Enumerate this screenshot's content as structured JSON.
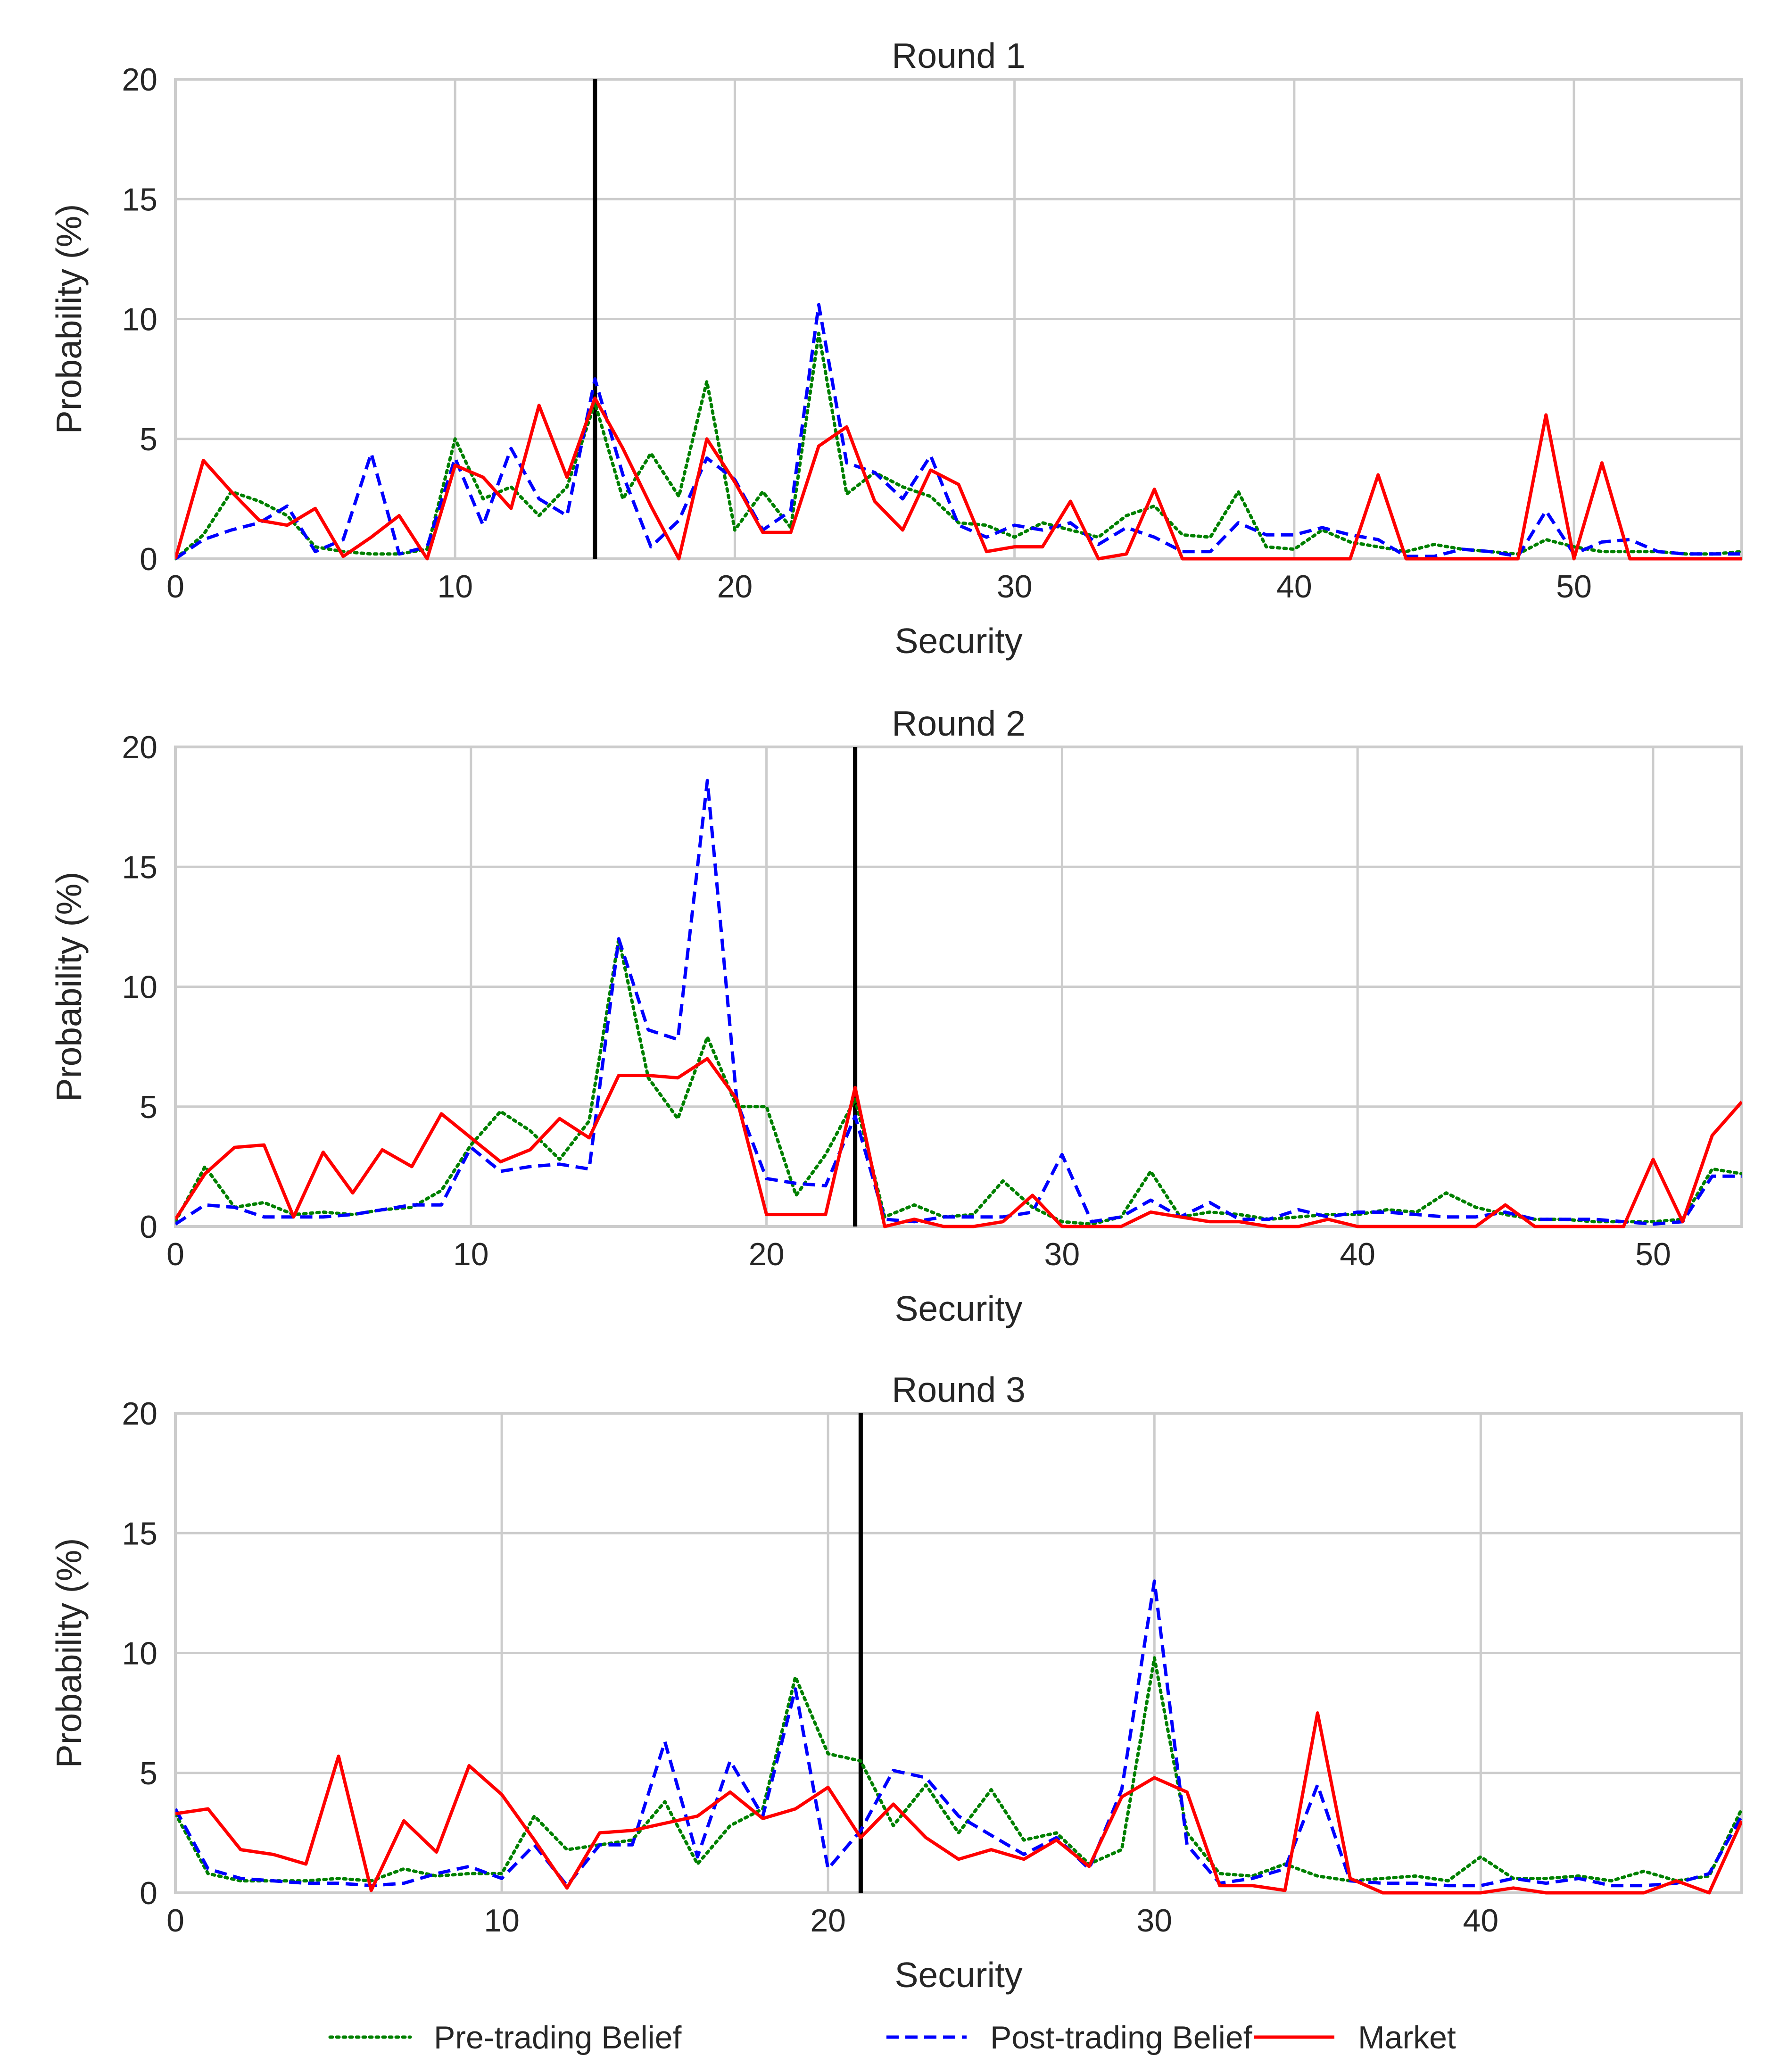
{
  "figure": {
    "legend": [
      {
        "label": "Pre-trading Belief",
        "color": "#008000",
        "style": "dotted"
      },
      {
        "label": "Post-trading Belief",
        "color": "#0000ff",
        "style": "dashed"
      },
      {
        "label": "Market",
        "color": "#ff0000",
        "style": "solid"
      }
    ],
    "legend_position": "bottom-center"
  },
  "chart_data": [
    {
      "type": "line",
      "title": "Round 1",
      "xlabel": "Security",
      "ylabel": "Probability (%)",
      "xlim": [
        0,
        56
      ],
      "ylim": [
        0,
        20
      ],
      "xticks": [
        0,
        10,
        20,
        30,
        40,
        50
      ],
      "yticks": [
        0,
        5,
        10,
        15,
        20
      ],
      "grid": true,
      "marker_line": {
        "x": 15,
        "color": "#000000"
      },
      "series": [
        {
          "name": "Pre-trading Belief",
          "color": "#008000",
          "style": "dotted",
          "values": [
            0,
            1.0,
            2.8,
            2.4,
            1.8,
            0.5,
            0.3,
            0.2,
            0.2,
            0.4,
            5.0,
            2.5,
            3.0,
            1.8,
            3.0,
            6.5,
            2.5,
            4.4,
            2.6,
            7.4,
            1.2,
            2.8,
            1.3,
            9.4,
            2.7,
            3.6,
            3.0,
            2.6,
            1.5,
            1.4,
            0.9,
            1.5,
            1.2,
            0.9,
            1.8,
            2.2,
            1.0,
            0.9,
            2.8,
            0.5,
            0.4,
            1.2,
            0.7,
            0.5,
            0.3,
            0.6,
            0.4,
            0.3,
            0.2,
            0.8,
            0.5,
            0.3,
            0.3,
            0.3,
            0.2,
            0.2,
            0.3
          ]
        },
        {
          "name": "Post-trading Belief",
          "color": "#0000ff",
          "style": "dashed",
          "values": [
            0,
            0.8,
            1.2,
            1.5,
            2.2,
            0.3,
            0.8,
            4.4,
            0.2,
            0.5,
            4.2,
            1.4,
            4.6,
            2.5,
            1.8,
            7.5,
            3.5,
            0.5,
            1.6,
            4.2,
            3.3,
            1.2,
            2.0,
            10.6,
            4.0,
            3.6,
            2.5,
            4.3,
            1.4,
            0.9,
            1.4,
            1.2,
            1.5,
            0.6,
            1.3,
            0.9,
            0.3,
            0.3,
            1.5,
            1.0,
            1.0,
            1.3,
            1.0,
            0.8,
            0.1,
            0.1,
            0.4,
            0.3,
            0.1,
            2.0,
            0.2,
            0.7,
            0.8,
            0.3,
            0.2,
            0.2,
            0.2
          ]
        },
        {
          "name": "Market",
          "color": "#ff0000",
          "style": "solid",
          "values": [
            0,
            4.1,
            2.8,
            1.6,
            1.4,
            2.1,
            0.1,
            0.9,
            1.8,
            0.0,
            3.9,
            3.4,
            2.1,
            6.4,
            3.4,
            6.7,
            4.6,
            2.2,
            0.0,
            5.0,
            3.2,
            1.1,
            1.1,
            4.7,
            5.5,
            2.4,
            1.2,
            3.7,
            3.1,
            0.3,
            0.5,
            0.5,
            2.4,
            0.0,
            0.2,
            2.9,
            0.0,
            0.0,
            0.0,
            0.0,
            0.0,
            0.0,
            0.0,
            3.5,
            0.0,
            0.0,
            0.0,
            0.0,
            0.0,
            6.0,
            0.0,
            4.0,
            0.0,
            0.0,
            0.0,
            0.0,
            0.0
          ]
        }
      ]
    },
    {
      "type": "line",
      "title": "Round 2",
      "xlabel": "Security",
      "ylabel": "Probability (%)",
      "xlim": [
        0,
        53
      ],
      "ylim": [
        0,
        20
      ],
      "xticks": [
        0,
        10,
        20,
        30,
        40,
        50
      ],
      "yticks": [
        0,
        5,
        10,
        15,
        20
      ],
      "grid": true,
      "marker_line": {
        "x": 23,
        "color": "#000000"
      },
      "series": [
        {
          "name": "Pre-trading Belief",
          "color": "#008000",
          "style": "dotted",
          "values": [
            0.2,
            2.5,
            0.8,
            1.0,
            0.5,
            0.6,
            0.5,
            0.7,
            0.8,
            1.5,
            3.4,
            4.8,
            4.0,
            2.8,
            4.4,
            12.0,
            6.2,
            4.5,
            7.9,
            5.0,
            5.0,
            1.3,
            3.0,
            5.3,
            0.4,
            0.9,
            0.4,
            0.5,
            1.9,
            0.8,
            0.2,
            0.1,
            0.4,
            2.3,
            0.4,
            0.6,
            0.5,
            0.3,
            0.4,
            0.5,
            0.5,
            0.7,
            0.6,
            1.4,
            0.8,
            0.5,
            0.3,
            0.3,
            0.2,
            0.2,
            0.2,
            0.3,
            2.4,
            2.2
          ]
        },
        {
          "name": "Post-trading Belief",
          "color": "#0000ff",
          "style": "dashed",
          "values": [
            0.1,
            0.9,
            0.8,
            0.4,
            0.4,
            0.4,
            0.5,
            0.7,
            0.9,
            0.9,
            3.3,
            2.3,
            2.5,
            2.6,
            2.4,
            12.0,
            8.2,
            7.8,
            18.6,
            5.2,
            2.0,
            1.8,
            1.7,
            4.6,
            0.3,
            0.2,
            0.4,
            0.4,
            0.4,
            0.6,
            3.0,
            0.2,
            0.4,
            1.1,
            0.4,
            1.0,
            0.3,
            0.3,
            0.7,
            0.4,
            0.6,
            0.6,
            0.5,
            0.4,
            0.4,
            0.6,
            0.3,
            0.3,
            0.3,
            0.2,
            0.1,
            0.2,
            2.1,
            2.1
          ]
        },
        {
          "name": "Market",
          "color": "#ff0000",
          "style": "solid",
          "values": [
            0.3,
            2.2,
            3.3,
            3.4,
            0.4,
            3.1,
            1.4,
            3.2,
            2.5,
            4.7,
            3.7,
            2.7,
            3.2,
            4.5,
            3.7,
            6.3,
            6.3,
            6.2,
            7.0,
            5.3,
            0.5,
            0.5,
            0.5,
            5.8,
            0.0,
            0.3,
            0.0,
            0.0,
            0.2,
            1.3,
            0.0,
            0.0,
            0.0,
            0.6,
            0.4,
            0.2,
            0.2,
            0.0,
            0.0,
            0.3,
            0.0,
            0.0,
            0.0,
            0.0,
            0.0,
            0.9,
            0.0,
            0.0,
            0.0,
            0.0,
            2.8,
            0.2,
            3.8,
            5.2
          ]
        }
      ]
    },
    {
      "type": "line",
      "title": "Round 3",
      "xlabel": "Security",
      "ylabel": "Probability (%)",
      "xlim": [
        0,
        48
      ],
      "ylim": [
        0,
        20
      ],
      "xticks": [
        0,
        10,
        20,
        30,
        40
      ],
      "yticks": [
        0,
        5,
        10,
        15,
        20
      ],
      "grid": true,
      "marker_line": {
        "x": 21,
        "color": "#000000"
      },
      "series": [
        {
          "name": "Pre-trading Belief",
          "color": "#008000",
          "style": "dotted",
          "values": [
            3.3,
            0.8,
            0.5,
            0.5,
            0.5,
            0.6,
            0.5,
            1.0,
            0.7,
            0.8,
            0.8,
            3.2,
            1.8,
            2.0,
            2.2,
            3.8,
            1.2,
            2.8,
            3.5,
            9.0,
            5.8,
            5.5,
            2.8,
            4.5,
            2.5,
            4.3,
            2.2,
            2.5,
            1.2,
            1.8,
            9.8,
            2.5,
            0.8,
            0.7,
            1.2,
            0.7,
            0.5,
            0.6,
            0.7,
            0.5,
            1.5,
            0.6,
            0.6,
            0.7,
            0.5,
            0.9,
            0.5,
            0.7,
            3.5
          ]
        },
        {
          "name": "Post-trading Belief",
          "color": "#0000ff",
          "style": "dashed",
          "values": [
            3.5,
            1.0,
            0.6,
            0.5,
            0.4,
            0.4,
            0.3,
            0.4,
            0.8,
            1.1,
            0.6,
            2.0,
            0.3,
            2.0,
            2.0,
            6.3,
            1.5,
            5.5,
            3.2,
            8.5,
            1.0,
            2.6,
            5.1,
            4.8,
            3.2,
            2.4,
            1.6,
            2.3,
            1.0,
            4.3,
            13.0,
            2.0,
            0.4,
            0.6,
            1.0,
            4.5,
            0.5,
            0.4,
            0.4,
            0.3,
            0.3,
            0.6,
            0.4,
            0.6,
            0.3,
            0.3,
            0.4,
            0.8,
            3.2
          ]
        },
        {
          "name": "Market",
          "color": "#ff0000",
          "style": "solid",
          "values": [
            3.3,
            3.5,
            1.8,
            1.6,
            1.2,
            5.7,
            0.1,
            3.0,
            1.7,
            5.3,
            4.1,
            2.2,
            0.2,
            2.5,
            2.6,
            2.9,
            3.2,
            4.2,
            3.1,
            3.5,
            4.4,
            2.3,
            3.7,
            2.3,
            1.4,
            1.8,
            1.4,
            2.2,
            1.1,
            4.0,
            4.8,
            4.2,
            0.3,
            0.3,
            0.1,
            7.5,
            0.6,
            0.0,
            0.0,
            0.0,
            0.0,
            0.2,
            0.0,
            0.0,
            0.0,
            0.0,
            0.5,
            0.0,
            3.0
          ]
        }
      ]
    }
  ]
}
